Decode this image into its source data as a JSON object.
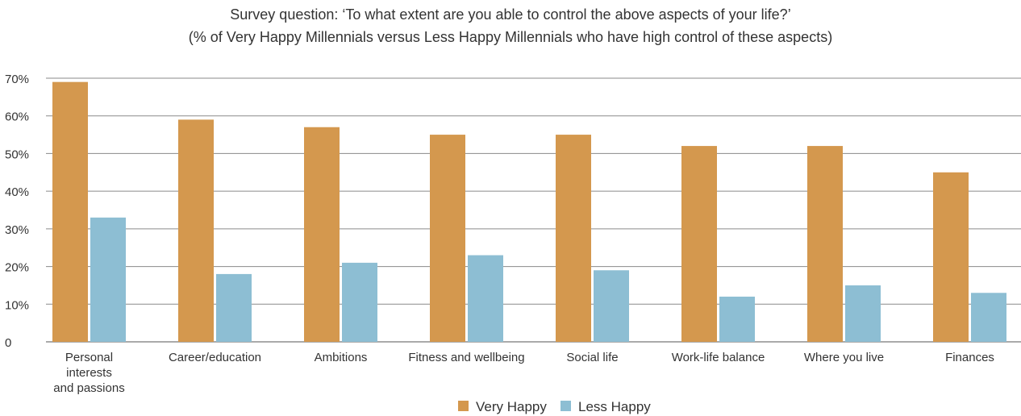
{
  "chart_data": {
    "type": "bar",
    "title": "Survey question: ‘To what extent are you able to control the above aspects of your life?’",
    "subtitle": "(% of Very Happy Millennials versus Less Happy Millennials who have high control of these aspects)",
    "categories": [
      [
        "Personal",
        "interests",
        "and passions"
      ],
      [
        "Career/education"
      ],
      [
        "Ambitions"
      ],
      [
        "Fitness and wellbeing"
      ],
      [
        "Social life"
      ],
      [
        "Work-life balance"
      ],
      [
        "Where you live"
      ],
      [
        "Finances"
      ]
    ],
    "series": [
      {
        "name": "Very Happy",
        "color": "#D4984E",
        "values": [
          69,
          59,
          57,
          55,
          55,
          52,
          52,
          45
        ]
      },
      {
        "name": "Less Happy",
        "color": "#8DBED3",
        "values": [
          33,
          18,
          21,
          23,
          19,
          12,
          15,
          13
        ]
      }
    ],
    "ylim": [
      0,
      70
    ],
    "yticks": [
      0,
      10,
      20,
      30,
      40,
      50,
      60,
      70
    ],
    "ytick_labels": [
      "0",
      "10%",
      "20%",
      "30%",
      "40%",
      "50%",
      "60%",
      "70%"
    ],
    "grid": true,
    "legend_position": "bottom-center"
  }
}
